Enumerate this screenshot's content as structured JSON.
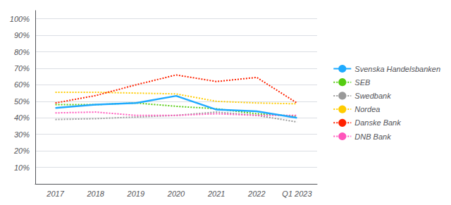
{
  "chart_data": {
    "type": "line",
    "categories": [
      "2017",
      "2018",
      "2019",
      "2020",
      "2021",
      "2022",
      "Q1 2023"
    ],
    "series": [
      {
        "name": "Svenska Handelsbanken",
        "color": "#1FAAFF",
        "line_style": "solid",
        "values": [
          0.46,
          0.48,
          0.49,
          0.533,
          0.45,
          0.44,
          0.4
        ]
      },
      {
        "name": "SEB",
        "color": "#55CC11",
        "line_style": "dotted",
        "values": [
          0.48,
          0.48,
          0.49,
          0.47,
          0.455,
          0.425,
          0.41
        ]
      },
      {
        "name": "Swedbank",
        "color": "#999999",
        "line_style": "dotted",
        "values": [
          0.39,
          0.395,
          0.405,
          0.415,
          0.435,
          0.415,
          0.375
        ]
      },
      {
        "name": "Nordea",
        "color": "#FFCC00",
        "line_style": "dotted",
        "values": [
          0.555,
          0.555,
          0.55,
          0.545,
          0.5,
          0.49,
          0.485
        ]
      },
      {
        "name": "Danske Bank",
        "color": "#FF2200",
        "line_style": "dotted",
        "values": [
          0.49,
          0.535,
          0.6,
          0.66,
          0.62,
          0.645,
          0.49
        ]
      },
      {
        "name": "DNB Bank",
        "color": "#FF55BB",
        "line_style": "dotted",
        "values": [
          0.43,
          0.435,
          0.415,
          0.415,
          0.425,
          0.415,
          0.415
        ]
      }
    ],
    "ylim": [
      0.0,
      1.05
    ],
    "yticks": [
      {
        "value": 0.1,
        "label": "10%"
      },
      {
        "value": 0.2,
        "label": "20%"
      },
      {
        "value": 0.3,
        "label": "30%"
      },
      {
        "value": 0.4,
        "label": "40%"
      },
      {
        "value": 0.5,
        "label": "50%"
      },
      {
        "value": 0.6,
        "label": "60%"
      },
      {
        "value": 0.7,
        "label": "70%"
      },
      {
        "value": 0.8,
        "label": "80%"
      },
      {
        "value": 0.9,
        "label": "90%"
      },
      {
        "value": 1.0,
        "label": "100%"
      }
    ],
    "grid": true,
    "legend": "right"
  }
}
